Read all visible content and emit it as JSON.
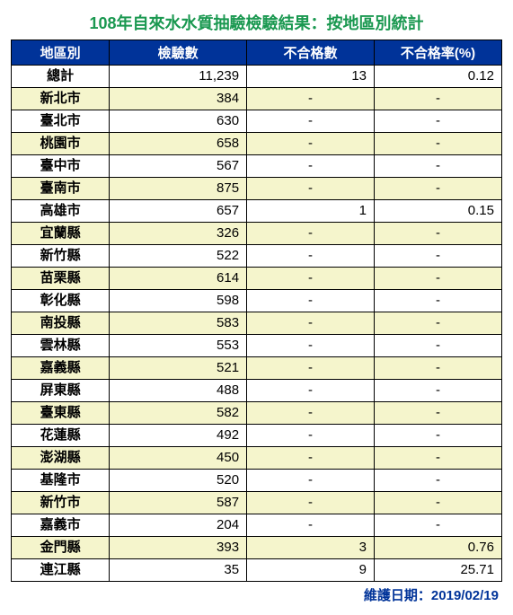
{
  "title": "108年自來水水質抽驗檢驗結果：按地區別統計",
  "title_color": "#1a9850",
  "header_bg": "#003399",
  "header_fg": "#ffffff",
  "row_alt_bg": "#f5f5cc",
  "row_bg": "#ffffff",
  "footer_color": "#003399",
  "border_color": "#000000",
  "columns": [
    "地區別",
    "檢驗數",
    "不合格數",
    "不合格率(%)"
  ],
  "rows": [
    {
      "region": "總計",
      "count": "11,239",
      "fail": "13",
      "rate": "0.12"
    },
    {
      "region": "新北市",
      "count": "384",
      "fail": "-",
      "rate": "-"
    },
    {
      "region": "臺北市",
      "count": "630",
      "fail": "-",
      "rate": "-"
    },
    {
      "region": "桃園市",
      "count": "658",
      "fail": "-",
      "rate": "-"
    },
    {
      "region": "臺中市",
      "count": "567",
      "fail": "-",
      "rate": "-"
    },
    {
      "region": "臺南市",
      "count": "875",
      "fail": "-",
      "rate": "-"
    },
    {
      "region": "高雄市",
      "count": "657",
      "fail": "1",
      "rate": "0.15"
    },
    {
      "region": "宜蘭縣",
      "count": "326",
      "fail": "-",
      "rate": "-"
    },
    {
      "region": "新竹縣",
      "count": "522",
      "fail": "-",
      "rate": "-"
    },
    {
      "region": "苗栗縣",
      "count": "614",
      "fail": "-",
      "rate": "-"
    },
    {
      "region": "彰化縣",
      "count": "598",
      "fail": "-",
      "rate": "-"
    },
    {
      "region": "南投縣",
      "count": "583",
      "fail": "-",
      "rate": "-"
    },
    {
      "region": "雲林縣",
      "count": "553",
      "fail": "-",
      "rate": "-"
    },
    {
      "region": "嘉義縣",
      "count": "521",
      "fail": "-",
      "rate": "-"
    },
    {
      "region": "屏東縣",
      "count": "488",
      "fail": "-",
      "rate": "-"
    },
    {
      "region": "臺東縣",
      "count": "582",
      "fail": "-",
      "rate": "-"
    },
    {
      "region": "花蓮縣",
      "count": "492",
      "fail": "-",
      "rate": "-"
    },
    {
      "region": "澎湖縣",
      "count": "450",
      "fail": "-",
      "rate": "-"
    },
    {
      "region": "基隆市",
      "count": "520",
      "fail": "-",
      "rate": "-"
    },
    {
      "region": "新竹市",
      "count": "587",
      "fail": "-",
      "rate": "-"
    },
    {
      "region": "嘉義市",
      "count": "204",
      "fail": "-",
      "rate": "-"
    },
    {
      "region": "金門縣",
      "count": "393",
      "fail": "3",
      "rate": "0.76"
    },
    {
      "region": "連江縣",
      "count": "35",
      "fail": "9",
      "rate": "25.71"
    }
  ],
  "footer": "維護日期：2019/02/19"
}
